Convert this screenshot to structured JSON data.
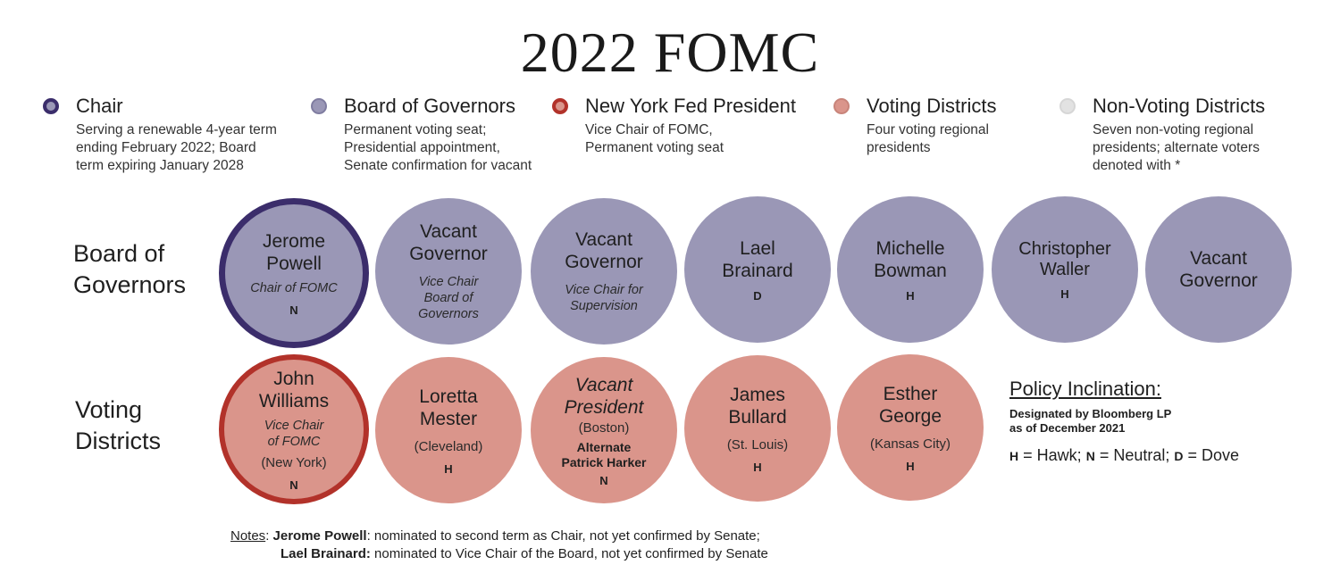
{
  "title": "2022 FOMC",
  "colors": {
    "chair_ring": "#3b2d6b",
    "governor_fill": "#9a97b6",
    "voting_fill": "#da958b",
    "ny_ring": "#b2322a",
    "nonvoting_fill": "#e2e2e2"
  },
  "legend": [
    {
      "name": "Chair",
      "desc": [
        "Serving a renewable 4-year term",
        "ending February 2022; Board",
        "term expiring January 2028"
      ]
    },
    {
      "name": "Board of Governors",
      "desc": [
        "Permanent voting seat;",
        "Presidential appointment,",
        "Senate confirmation for vacant"
      ]
    },
    {
      "name": "New York Fed President",
      "desc": [
        "Vice Chair of FOMC,",
        "Permanent voting seat"
      ]
    },
    {
      "name": "Voting Districts",
      "desc": [
        "Four voting regional",
        "presidents"
      ]
    },
    {
      "name": "Non-Voting Districts",
      "desc": [
        "Seven non-voting regional",
        "presidents; alternate voters",
        "denoted with *"
      ]
    }
  ],
  "rows": {
    "board": [
      "Board of",
      "Governors"
    ],
    "voting": [
      "Voting",
      "Districts"
    ]
  },
  "governors": [
    {
      "name": [
        "Jerome",
        "Powell"
      ],
      "role": [
        "Chair of FOMC"
      ],
      "incl": "N"
    },
    {
      "name": [
        "Vacant",
        "Governor"
      ],
      "role": [
        "Vice Chair",
        "Board of",
        "Governors"
      ],
      "incl": ""
    },
    {
      "name": [
        "Vacant",
        "Governor"
      ],
      "role": [
        "Vice Chair for",
        "Supervision"
      ],
      "incl": ""
    },
    {
      "name": [
        "Lael",
        "Brainard"
      ],
      "role": [],
      "incl": "D"
    },
    {
      "name": [
        "Michelle",
        "Bowman"
      ],
      "role": [],
      "incl": "H"
    },
    {
      "name": [
        "Christopher",
        "Waller"
      ],
      "role": [],
      "incl": "H"
    },
    {
      "name": [
        "Vacant",
        "Governor"
      ],
      "role": [],
      "incl": ""
    }
  ],
  "districts": [
    {
      "name": [
        "John",
        "Williams"
      ],
      "role": [
        "Vice Chair",
        "of FOMC"
      ],
      "location": "(New York)",
      "alternate": [],
      "incl": "N"
    },
    {
      "name": [
        "Loretta",
        "Mester"
      ],
      "role": [],
      "location": "(Cleveland)",
      "alternate": [],
      "incl": "H"
    },
    {
      "name": [
        "Vacant",
        "President"
      ],
      "role": [],
      "location": "(Boston)",
      "alternate": [
        "Alternate",
        "Patrick Harker"
      ],
      "incl": "N"
    },
    {
      "name": [
        "James",
        "Bullard"
      ],
      "role": [],
      "location": "(St. Louis)",
      "alternate": [],
      "incl": "H"
    },
    {
      "name": [
        "Esther",
        "George"
      ],
      "role": [],
      "location": "(Kansas City)",
      "alternate": [],
      "incl": "H"
    }
  ],
  "policy": {
    "title": "Policy Inclination:",
    "source": [
      "Designated by Bloomberg LP",
      "as of December 2021"
    ],
    "key": [
      {
        "code": "H",
        "label": "= Hawk;"
      },
      {
        "code": "N",
        "label": "= Neutral;"
      },
      {
        "code": "D",
        "label": "= Dove"
      }
    ]
  },
  "notes": {
    "prefix": "Notes",
    "items": [
      {
        "name": "Jerome Powell",
        "text": ": nominated to second term as Chair, not yet confirmed by Senate;"
      },
      {
        "name": "Lael Brainard:",
        "text": " nominated to Vice Chair of the Board, not yet confirmed by Senate"
      }
    ]
  }
}
